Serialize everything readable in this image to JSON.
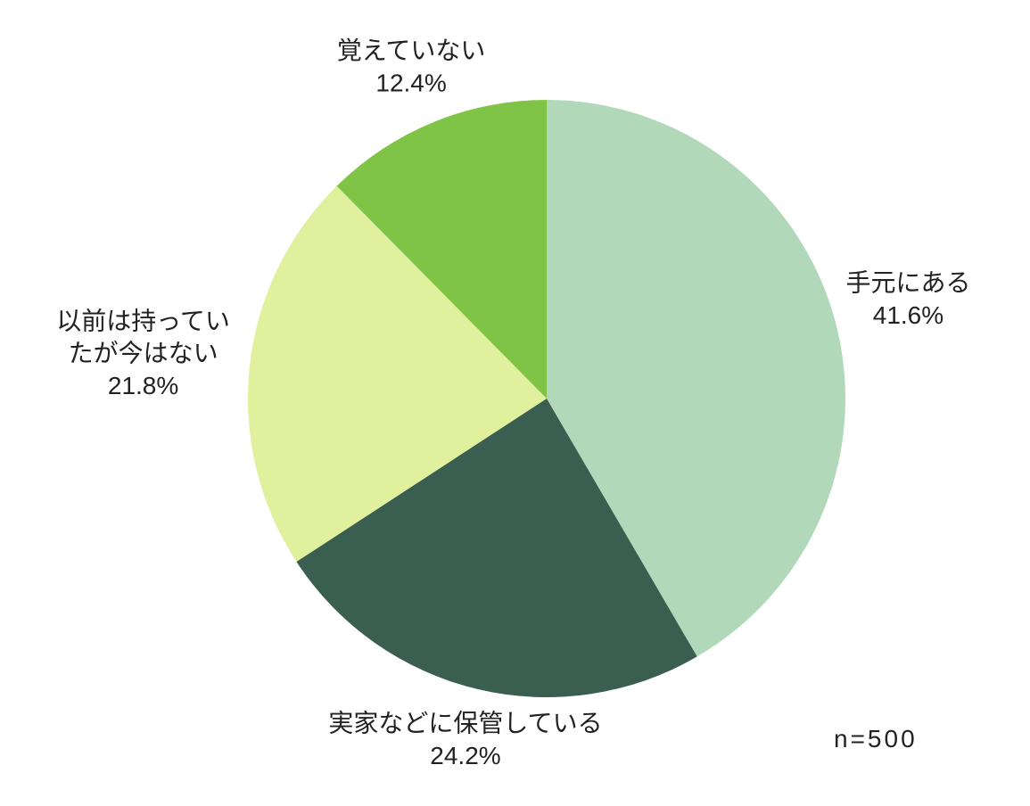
{
  "chart_data": {
    "type": "pie",
    "categories": [
      "手元にある",
      "実家などに保管している",
      "以前は持ってい\nたが今はない",
      "覚えていない"
    ],
    "values": [
      41.6,
      24.2,
      21.8,
      12.4
    ],
    "value_labels": [
      "41.6%",
      "24.2%",
      "21.8%",
      "12.4%"
    ],
    "colors": [
      "#b1d9b9",
      "#3a5e50",
      "#e0f09c",
      "#80c447"
    ],
    "annotation": "n=500"
  }
}
